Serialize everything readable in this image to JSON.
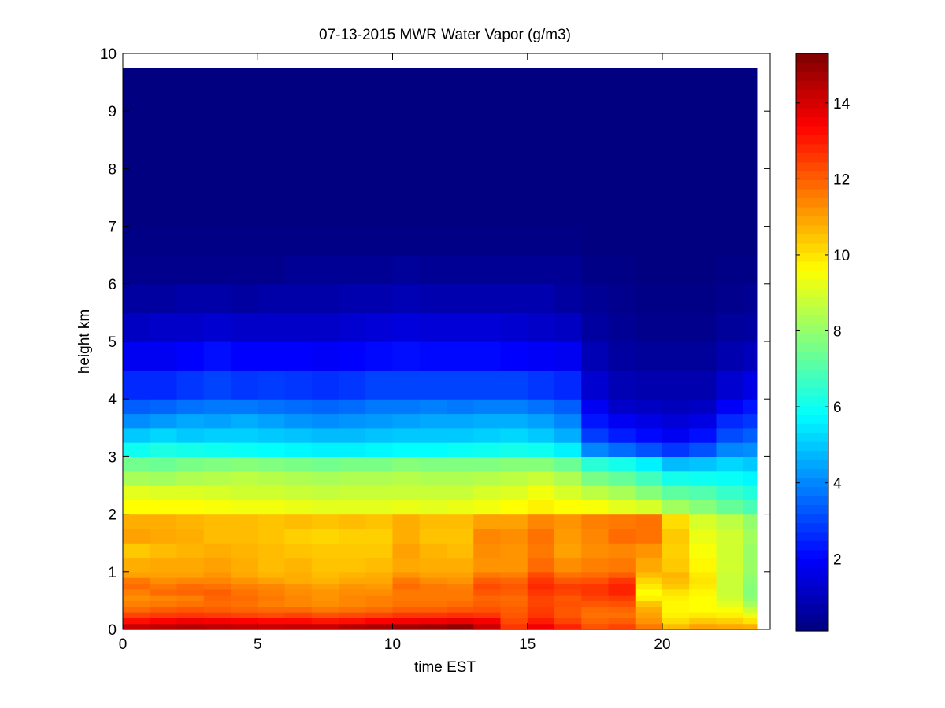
{
  "chart_data": {
    "type": "heatmap",
    "title": "07-13-2015 MWR Water Vapor (g/m3)",
    "xlabel": "time EST",
    "ylabel": "height km",
    "xlim": [
      0,
      24
    ],
    "ylim": [
      0,
      10
    ],
    "x_ticks": [
      0,
      5,
      10,
      15,
      20
    ],
    "y_ticks": [
      0,
      1,
      2,
      3,
      4,
      5,
      6,
      7,
      8,
      9,
      10
    ],
    "colorbar": {
      "colormap": "jet",
      "range": [
        0.1,
        15.3
      ],
      "ticks": [
        2,
        4,
        6,
        8,
        10,
        12,
        14
      ]
    },
    "grid": false,
    "data_extent": {
      "x": [
        0,
        23.5
      ],
      "y": [
        0,
        9.75
      ]
    },
    "time_columns": [
      0,
      1,
      2,
      3,
      4,
      5,
      6,
      7,
      8,
      9,
      10,
      11,
      12,
      13,
      14,
      15,
      16,
      17,
      18,
      19,
      20,
      21,
      22,
      23
    ],
    "height_levels_km": [
      0,
      0.1,
      0.2,
      0.3,
      0.4,
      0.5,
      0.6,
      0.7,
      0.8,
      0.9,
      1.0,
      1.25,
      1.5,
      1.75,
      2.0,
      2.25,
      2.5,
      2.75,
      3.0,
      3.25,
      3.5,
      3.75,
      4.0,
      4.5,
      5.0,
      5.5,
      6.0,
      6.5,
      7.0,
      8.0,
      9.0,
      9.75
    ],
    "profiles_g_m3": [
      [
        14.2,
        13.2,
        12.4,
        11.8,
        11.5,
        11.3,
        11.5,
        11.8,
        11.6,
        11.0,
        10.8,
        10.4,
        11.0,
        10.8,
        9.6,
        9.2,
        8.3,
        7.5,
        6.0,
        5.0,
        4.1,
        3.4,
        2.6,
        1.8,
        1.1,
        0.6,
        0.3,
        0.2,
        0.1,
        0.1,
        0.1,
        0.1
      ],
      [
        14.4,
        13.4,
        12.5,
        12.0,
        11.6,
        11.4,
        11.8,
        11.6,
        11.3,
        11.0,
        10.9,
        10.6,
        10.9,
        10.8,
        9.6,
        9.1,
        8.2,
        7.4,
        6.2,
        5.2,
        4.3,
        3.5,
        2.6,
        1.8,
        1.2,
        0.6,
        0.3,
        0.2,
        0.1,
        0.1,
        0.1,
        0.1
      ],
      [
        14.5,
        13.6,
        12.6,
        12.1,
        11.7,
        11.5,
        11.9,
        11.8,
        11.4,
        11.0,
        10.9,
        10.7,
        10.8,
        10.7,
        9.6,
        9.1,
        8.4,
        7.6,
        6.1,
        5.0,
        4.5,
        3.7,
        2.8,
        2.0,
        1.2,
        0.7,
        0.3,
        0.2,
        0.1,
        0.1,
        0.1,
        0.1
      ],
      [
        14.4,
        13.5,
        12.5,
        12.0,
        11.8,
        11.9,
        12.0,
        11.7,
        11.4,
        11.2,
        11.0,
        10.8,
        10.6,
        10.6,
        9.5,
        9.0,
        8.5,
        7.7,
        6.0,
        5.1,
        4.4,
        3.8,
        3.0,
        2.2,
        1.3,
        0.7,
        0.3,
        0.2,
        0.1,
        0.1,
        0.1,
        0.1
      ],
      [
        14.3,
        13.4,
        12.4,
        11.9,
        11.7,
        11.8,
        11.7,
        11.5,
        11.2,
        10.9,
        10.8,
        10.7,
        10.6,
        10.6,
        9.4,
        8.9,
        8.6,
        7.8,
        5.9,
        5.1,
        4.6,
        3.8,
        2.8,
        2.0,
        1.2,
        0.6,
        0.3,
        0.2,
        0.1,
        0.1,
        0.1,
        0.1
      ],
      [
        14.2,
        13.3,
        12.3,
        11.8,
        11.5,
        11.6,
        11.5,
        11.4,
        11.0,
        10.7,
        10.6,
        10.6,
        10.5,
        10.5,
        9.4,
        8.9,
        8.5,
        7.7,
        5.8,
        5.0,
        4.4,
        3.7,
        2.9,
        2.0,
        1.2,
        0.7,
        0.3,
        0.2,
        0.1,
        0.1,
        0.1,
        0.1
      ],
      [
        14.3,
        13.3,
        12.4,
        11.8,
        11.4,
        11.4,
        11.3,
        11.2,
        10.8,
        10.8,
        10.7,
        10.5,
        10.3,
        10.6,
        9.3,
        8.8,
        8.4,
        7.6,
        5.7,
        4.9,
        4.2,
        3.6,
        2.8,
        2.0,
        1.2,
        0.7,
        0.4,
        0.2,
        0.1,
        0.1,
        0.1,
        0.1
      ],
      [
        14.2,
        13.1,
        12.2,
        11.6,
        11.3,
        11.2,
        11.2,
        11.0,
        10.7,
        10.6,
        10.5,
        10.4,
        10.2,
        10.5,
        9.2,
        8.7,
        8.3,
        7.5,
        5.6,
        4.8,
        4.1,
        3.5,
        2.7,
        1.9,
        1.2,
        0.7,
        0.4,
        0.2,
        0.1,
        0.1,
        0.1,
        0.1
      ],
      [
        14.5,
        13.2,
        12.3,
        11.7,
        11.4,
        11.4,
        11.3,
        11.2,
        10.9,
        10.7,
        10.5,
        10.4,
        10.3,
        10.6,
        9.2,
        8.8,
        8.4,
        7.6,
        5.6,
        4.8,
        4.2,
        3.6,
        2.8,
        2.0,
        1.3,
        0.8,
        0.4,
        0.2,
        0.1,
        0.1,
        0.1,
        0.1
      ],
      [
        14.7,
        13.4,
        12.4,
        11.8,
        11.5,
        11.5,
        11.3,
        11.1,
        10.9,
        10.8,
        10.6,
        10.4,
        10.3,
        10.5,
        9.2,
        8.8,
        8.4,
        7.6,
        5.7,
        4.9,
        4.3,
        3.8,
        3.0,
        2.1,
        1.4,
        0.8,
        0.4,
        0.2,
        0.1,
        0.1,
        0.1,
        0.1
      ],
      [
        14.8,
        13.5,
        12.6,
        12.0,
        11.7,
        11.6,
        11.6,
        11.8,
        11.6,
        11.2,
        10.9,
        11.0,
        10.8,
        10.8,
        9.3,
        8.8,
        8.5,
        7.8,
        5.8,
        5.0,
        4.4,
        3.8,
        3.0,
        2.2,
        1.5,
        0.9,
        0.5,
        0.2,
        0.1,
        0.1,
        0.1,
        0.1
      ],
      [
        14.9,
        13.6,
        12.6,
        12.0,
        11.7,
        11.6,
        11.6,
        11.6,
        11.3,
        11.0,
        10.8,
        10.7,
        10.5,
        10.6,
        9.2,
        8.8,
        8.4,
        7.7,
        5.8,
        5.0,
        4.5,
        3.9,
        3.0,
        2.1,
        1.4,
        0.8,
        0.4,
        0.2,
        0.1,
        0.1,
        0.1,
        0.1
      ],
      [
        15.1,
        13.7,
        12.7,
        12.1,
        11.8,
        11.6,
        11.6,
        11.5,
        11.2,
        11.0,
        10.8,
        10.6,
        10.5,
        10.6,
        9.3,
        8.8,
        8.4,
        7.7,
        5.9,
        5.0,
        4.5,
        3.8,
        3.0,
        2.1,
        1.4,
        0.8,
        0.4,
        0.2,
        0.1,
        0.1,
        0.1,
        0.1
      ],
      [
        14.2,
        13.5,
        12.6,
        12.2,
        12.0,
        11.9,
        12.1,
        12.3,
        12.0,
        11.6,
        11.2,
        11.3,
        11.4,
        11.0,
        9.4,
        9.0,
        8.5,
        7.7,
        6.0,
        5.1,
        4.6,
        3.9,
        3.0,
        2.1,
        1.4,
        0.8,
        0.4,
        0.2,
        0.1,
        0.1,
        0.1,
        0.1
      ],
      [
        12.6,
        12.3,
        12.1,
        12.0,
        11.9,
        11.8,
        12.0,
        12.1,
        11.9,
        11.5,
        11.2,
        11.2,
        11.3,
        11.0,
        9.6,
        9.1,
        8.6,
        7.8,
        6.1,
        5.2,
        4.6,
        3.9,
        3.0,
        2.0,
        1.3,
        0.8,
        0.4,
        0.2,
        0.1,
        0.1,
        0.1,
        0.1
      ],
      [
        13.6,
        13.0,
        12.6,
        12.5,
        12.4,
        12.4,
        12.6,
        12.8,
        12.6,
        12.3,
        11.8,
        11.6,
        11.7,
        11.4,
        9.8,
        9.4,
        8.8,
        7.8,
        6.0,
        5.0,
        4.4,
        3.7,
        2.8,
        1.9,
        1.2,
        0.8,
        0.4,
        0.2,
        0.1,
        0.1,
        0.1,
        0.1
      ],
      [
        12.9,
        12.4,
        12.1,
        12.1,
        12.2,
        12.1,
        12.4,
        12.5,
        12.1,
        11.7,
        11.3,
        11.0,
        11.1,
        11.2,
        9.6,
        9.0,
        8.4,
        7.4,
        5.6,
        4.6,
        4.0,
        3.4,
        2.6,
        1.8,
        1.1,
        0.6,
        0.4,
        0.2,
        0.1,
        0.1,
        0.1,
        0.1
      ],
      [
        12.2,
        11.9,
        11.7,
        11.8,
        12.1,
        12.4,
        12.6,
        12.6,
        12.2,
        11.8,
        11.5,
        11.3,
        11.4,
        11.5,
        9.5,
        8.6,
        7.6,
        6.4,
        4.0,
        2.9,
        2.3,
        1.8,
        1.3,
        0.9,
        0.6,
        0.4,
        0.2,
        0.1,
        0.1,
        0.1,
        0.1,
        0.1
      ],
      [
        12.4,
        12.0,
        11.7,
        11.9,
        12.2,
        12.5,
        12.9,
        12.9,
        12.6,
        12.0,
        11.6,
        11.4,
        11.8,
        11.6,
        9.2,
        8.3,
        7.3,
        6.1,
        3.6,
        2.4,
        1.8,
        1.2,
        0.9,
        0.6,
        0.4,
        0.3,
        0.2,
        0.1,
        0.1,
        0.1,
        0.1,
        0.1
      ],
      [
        11.6,
        11.2,
        11.0,
        10.8,
        10.5,
        9.8,
        9.6,
        9.9,
        10.2,
        10.6,
        10.9,
        11.2,
        11.7,
        11.7,
        9.0,
        7.8,
        6.8,
        5.6,
        3.2,
        2.1,
        1.6,
        1.1,
        0.8,
        0.5,
        0.3,
        0.2,
        0.1,
        0.1,
        0.1,
        0.1,
        0.1,
        0.1
      ],
      [
        10.6,
        10.1,
        9.8,
        9.7,
        9.7,
        9.8,
        10.0,
        10.4,
        10.6,
        10.7,
        10.4,
        10.3,
        10.4,
        10.1,
        8.2,
        7.2,
        6.1,
        4.8,
        2.8,
        1.8,
        1.4,
        1.0,
        0.8,
        0.5,
        0.3,
        0.2,
        0.1,
        0.1,
        0.1,
        0.1,
        0.1,
        0.1
      ],
      [
        11.0,
        10.4,
        9.9,
        9.6,
        9.6,
        9.6,
        9.7,
        9.9,
        10.0,
        9.9,
        9.7,
        9.5,
        9.3,
        9.0,
        7.8,
        7.0,
        6.0,
        4.9,
        3.2,
        2.2,
        1.6,
        1.1,
        0.8,
        0.5,
        0.3,
        0.2,
        0.1,
        0.1,
        0.1,
        0.1,
        0.1,
        0.1
      ],
      [
        10.9,
        10.3,
        9.8,
        9.5,
        9.2,
        8.9,
        8.8,
        8.8,
        8.8,
        8.8,
        8.9,
        8.9,
        8.9,
        8.6,
        7.3,
        6.6,
        5.9,
        5.2,
        4.0,
        3.1,
        2.6,
        1.9,
        1.3,
        0.8,
        0.5,
        0.3,
        0.2,
        0.1,
        0.1,
        0.1,
        0.1,
        0.1
      ],
      [
        10.8,
        10.0,
        9.3,
        8.8,
        8.3,
        7.9,
        7.8,
        7.8,
        7.9,
        8.0,
        8.1,
        8.1,
        8.2,
        8.0,
        6.9,
        6.3,
        5.7,
        5.0,
        4.1,
        3.4,
        2.8,
        2.3,
        1.6,
        1.0,
        0.6,
        0.4,
        0.2,
        0.1,
        0.1,
        0.1,
        0.1,
        0.1
      ]
    ]
  }
}
